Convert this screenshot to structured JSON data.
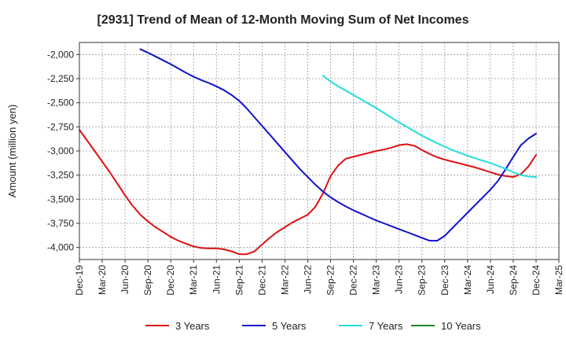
{
  "chart_data": {
    "type": "line",
    "title": "[2931]  Trend of Mean of 12-Month Moving Sum of Net Incomes",
    "ylabel": "Amount (million yen)",
    "xlabel": "",
    "ylim": [
      -4125,
      -1875
    ],
    "yticks": [
      -2000,
      -2250,
      -2500,
      -2750,
      -3000,
      -3250,
      -3500,
      -3750,
      -4000
    ],
    "ytick_labels": [
      "-2,000",
      "-2,250",
      "-2,500",
      "-2,750",
      "-3,000",
      "-3,250",
      "-3,500",
      "-3,750",
      "-4,000"
    ],
    "xlim": [
      "2019-12",
      "2025-03"
    ],
    "xticks": [
      "2019-12",
      "2020-03",
      "2020-06",
      "2020-09",
      "2020-12",
      "2021-03",
      "2021-06",
      "2021-09",
      "2021-12",
      "2022-03",
      "2022-06",
      "2022-09",
      "2022-12",
      "2023-03",
      "2023-06",
      "2023-09",
      "2023-12",
      "2024-03",
      "2024-06",
      "2024-09",
      "2024-12",
      "2025-03"
    ],
    "xtick_labels": [
      "Dec-19",
      "Mar-20",
      "Jun-20",
      "Sep-20",
      "Dec-20",
      "Mar-21",
      "Jun-21",
      "Sep-21",
      "Dec-21",
      "Mar-22",
      "Jun-22",
      "Sep-22",
      "Dec-22",
      "Mar-23",
      "Jun-23",
      "Sep-23",
      "Dec-23",
      "Mar-24",
      "Jun-24",
      "Sep-24",
      "Dec-24",
      "Mar-25"
    ],
    "grid": true,
    "legend_position": "bottom",
    "series": [
      {
        "name": "3 Years",
        "color": "#dd1111",
        "points": [
          [
            "2019-12",
            -2780
          ],
          [
            "2020-01",
            -2890
          ],
          [
            "2020-02",
            -3000
          ],
          [
            "2020-03",
            -3110
          ],
          [
            "2020-04",
            -3220
          ],
          [
            "2020-05",
            -3340
          ],
          [
            "2020-06",
            -3460
          ],
          [
            "2020-07",
            -3570
          ],
          [
            "2020-08",
            -3660
          ],
          [
            "2020-09",
            -3730
          ],
          [
            "2020-10",
            -3790
          ],
          [
            "2020-11",
            -3840
          ],
          [
            "2020-12",
            -3890
          ],
          [
            "2021-01",
            -3930
          ],
          [
            "2021-02",
            -3960
          ],
          [
            "2021-03",
            -3990
          ],
          [
            "2021-04",
            -4005
          ],
          [
            "2021-05",
            -4010
          ],
          [
            "2021-06",
            -4010
          ],
          [
            "2021-07",
            -4020
          ],
          [
            "2021-08",
            -4040
          ],
          [
            "2021-09",
            -4070
          ],
          [
            "2021-10",
            -4070
          ],
          [
            "2021-11",
            -4040
          ],
          [
            "2021-12",
            -3970
          ],
          [
            "2022-01",
            -3900
          ],
          [
            "2022-02",
            -3840
          ],
          [
            "2022-03",
            -3790
          ],
          [
            "2022-04",
            -3740
          ],
          [
            "2022-05",
            -3700
          ],
          [
            "2022-06",
            -3660
          ],
          [
            "2022-07",
            -3580
          ],
          [
            "2022-08",
            -3440
          ],
          [
            "2022-09",
            -3260
          ],
          [
            "2022-10",
            -3150
          ],
          [
            "2022-11",
            -3080
          ],
          [
            "2022-12",
            -3060
          ],
          [
            "2023-01",
            -3040
          ],
          [
            "2023-02",
            -3020
          ],
          [
            "2023-03",
            -3000
          ],
          [
            "2023-04",
            -2985
          ],
          [
            "2023-05",
            -2965
          ],
          [
            "2023-06",
            -2940
          ],
          [
            "2023-07",
            -2930
          ],
          [
            "2023-08",
            -2945
          ],
          [
            "2023-09",
            -2990
          ],
          [
            "2023-10",
            -3030
          ],
          [
            "2023-11",
            -3065
          ],
          [
            "2023-12",
            -3090
          ],
          [
            "2024-01",
            -3110
          ],
          [
            "2024-02",
            -3130
          ],
          [
            "2024-03",
            -3150
          ],
          [
            "2024-04",
            -3170
          ],
          [
            "2024-05",
            -3195
          ],
          [
            "2024-06",
            -3220
          ],
          [
            "2024-07",
            -3245
          ],
          [
            "2024-08",
            -3260
          ],
          [
            "2024-09",
            -3270
          ],
          [
            "2024-10",
            -3240
          ],
          [
            "2024-11",
            -3160
          ],
          [
            "2024-12",
            -3040
          ]
        ]
      },
      {
        "name": "5 Years",
        "color": "#1111cc",
        "points": [
          [
            "2020-08",
            -1945
          ],
          [
            "2020-09",
            -1980
          ],
          [
            "2020-10",
            -2020
          ],
          [
            "2020-11",
            -2060
          ],
          [
            "2020-12",
            -2100
          ],
          [
            "2021-01",
            -2145
          ],
          [
            "2021-02",
            -2190
          ],
          [
            "2021-03",
            -2230
          ],
          [
            "2021-04",
            -2265
          ],
          [
            "2021-05",
            -2295
          ],
          [
            "2021-06",
            -2330
          ],
          [
            "2021-07",
            -2370
          ],
          [
            "2021-08",
            -2420
          ],
          [
            "2021-09",
            -2480
          ],
          [
            "2021-10",
            -2560
          ],
          [
            "2021-11",
            -2650
          ],
          [
            "2021-12",
            -2740
          ],
          [
            "2022-01",
            -2830
          ],
          [
            "2022-02",
            -2920
          ],
          [
            "2022-03",
            -3010
          ],
          [
            "2022-04",
            -3100
          ],
          [
            "2022-05",
            -3190
          ],
          [
            "2022-06",
            -3270
          ],
          [
            "2022-07",
            -3350
          ],
          [
            "2022-08",
            -3420
          ],
          [
            "2022-09",
            -3480
          ],
          [
            "2022-10",
            -3530
          ],
          [
            "2022-11",
            -3575
          ],
          [
            "2022-12",
            -3615
          ],
          [
            "2023-01",
            -3650
          ],
          [
            "2023-02",
            -3685
          ],
          [
            "2023-03",
            -3720
          ],
          [
            "2023-04",
            -3750
          ],
          [
            "2023-05",
            -3780
          ],
          [
            "2023-06",
            -3810
          ],
          [
            "2023-07",
            -3840
          ],
          [
            "2023-08",
            -3870
          ],
          [
            "2023-09",
            -3900
          ],
          [
            "2023-10",
            -3930
          ],
          [
            "2023-11",
            -3930
          ],
          [
            "2023-12",
            -3880
          ],
          [
            "2024-01",
            -3800
          ],
          [
            "2024-02",
            -3720
          ],
          [
            "2024-03",
            -3640
          ],
          [
            "2024-04",
            -3560
          ],
          [
            "2024-05",
            -3480
          ],
          [
            "2024-06",
            -3400
          ],
          [
            "2024-07",
            -3310
          ],
          [
            "2024-08",
            -3190
          ],
          [
            "2024-09",
            -3060
          ],
          [
            "2024-10",
            -2940
          ],
          [
            "2024-11",
            -2870
          ],
          [
            "2024-12",
            -2820
          ]
        ]
      },
      {
        "name": "7 Years",
        "color": "#22dddd",
        "points": [
          [
            "2022-08",
            -2220
          ],
          [
            "2022-09",
            -2280
          ],
          [
            "2022-10",
            -2330
          ],
          [
            "2022-11",
            -2375
          ],
          [
            "2022-12",
            -2420
          ],
          [
            "2023-01",
            -2465
          ],
          [
            "2023-02",
            -2510
          ],
          [
            "2023-03",
            -2555
          ],
          [
            "2023-04",
            -2605
          ],
          [
            "2023-05",
            -2655
          ],
          [
            "2023-06",
            -2705
          ],
          [
            "2023-07",
            -2750
          ],
          [
            "2023-08",
            -2795
          ],
          [
            "2023-09",
            -2840
          ],
          [
            "2023-10",
            -2880
          ],
          [
            "2023-11",
            -2920
          ],
          [
            "2023-12",
            -2955
          ],
          [
            "2024-01",
            -2990
          ],
          [
            "2024-02",
            -3020
          ],
          [
            "2024-03",
            -3050
          ],
          [
            "2024-04",
            -3075
          ],
          [
            "2024-05",
            -3100
          ],
          [
            "2024-06",
            -3125
          ],
          [
            "2024-07",
            -3155
          ],
          [
            "2024-08",
            -3185
          ],
          [
            "2024-09",
            -3220
          ],
          [
            "2024-10",
            -3250
          ],
          [
            "2024-11",
            -3265
          ],
          [
            "2024-12",
            -3270
          ]
        ]
      },
      {
        "name": "10 Years",
        "color": "#228822",
        "points": []
      }
    ]
  }
}
